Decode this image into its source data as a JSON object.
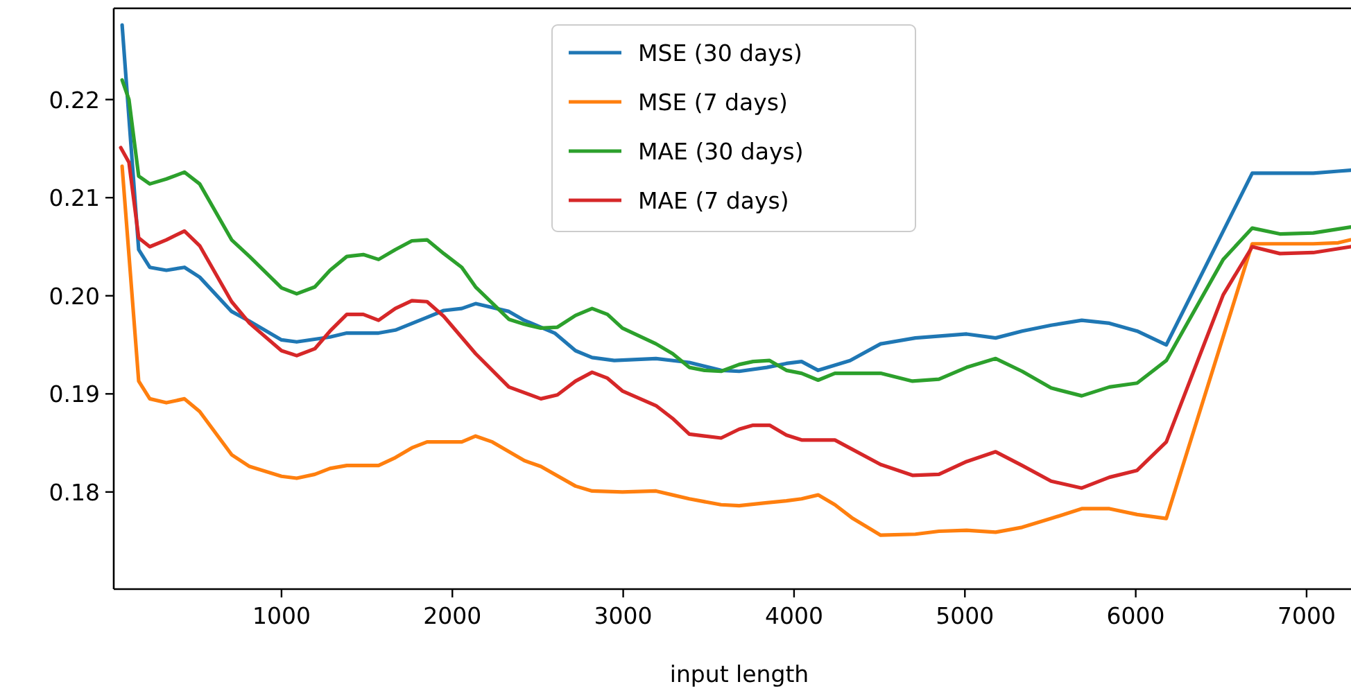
{
  "chart_data": {
    "type": "line",
    "xlabel": "input length",
    "xlim": [
      18,
      7260
    ],
    "xticks": [
      1000,
      2000,
      3000,
      4000,
      5000,
      6000,
      7000
    ],
    "ylim": [
      0.1701,
      0.2293
    ],
    "yticks": [
      {
        "value": 0.18,
        "label": "0.18"
      },
      {
        "value": 0.19,
        "label": "0.19"
      },
      {
        "value": 0.2,
        "label": "0.20"
      },
      {
        "value": 0.21,
        "label": "0.21"
      },
      {
        "value": 0.22,
        "label": "0.22"
      }
    ],
    "legend": "top",
    "series": [
      {
        "name": "MSE (30 days)",
        "color": "#1f77b4",
        "x": [
          67,
          164,
          229,
          326,
          432,
          521,
          708,
          813,
          1000,
          1089,
          1284,
          1382,
          1568,
          1666,
          1852,
          1950,
          2055,
          2136,
          2331,
          2421,
          2599,
          2721,
          2818,
          2948,
          3192,
          3387,
          3573,
          3679,
          3841,
          3955,
          4044,
          4141,
          4328,
          4507,
          4710,
          5010,
          5180,
          5335,
          5505,
          5684,
          5846,
          6008,
          6179,
          6682,
          7039,
          7185,
          7258
        ],
        "values": [
          0.2276,
          0.2047,
          0.2029,
          0.2026,
          0.2029,
          0.2019,
          0.1984,
          0.1974,
          0.1955,
          0.1953,
          0.1958,
          0.1962,
          0.1962,
          0.1965,
          0.1978,
          0.1985,
          0.1987,
          0.1992,
          0.1984,
          0.1975,
          0.1962,
          0.1944,
          0.1937,
          0.1934,
          0.1936,
          0.1932,
          0.1924,
          0.1923,
          0.1927,
          0.1931,
          0.1933,
          0.1924,
          0.1934,
          0.1951,
          0.1957,
          0.1961,
          0.1957,
          0.1964,
          0.197,
          0.1975,
          0.1972,
          0.1964,
          0.195,
          0.2125,
          0.2125,
          0.2127,
          0.2128
        ]
      },
      {
        "name": "MSE (7 days)",
        "color": "#ff7f0e",
        "x": [
          67,
          164,
          229,
          326,
          432,
          521,
          708,
          813,
          1000,
          1089,
          1195,
          1284,
          1382,
          1568,
          1666,
          1763,
          1852,
          2055,
          2136,
          2234,
          2421,
          2518,
          2721,
          2818,
          2995,
          3192,
          3289,
          3387,
          3573,
          3679,
          3841,
          3955,
          4044,
          4141,
          4239,
          4344,
          4507,
          4710,
          4848,
          5010,
          5180,
          5335,
          5505,
          5684,
          5846,
          6008,
          6179,
          6682,
          7039,
          7185,
          7258
        ],
        "values": [
          0.2132,
          0.1913,
          0.1895,
          0.1891,
          0.1895,
          0.1882,
          0.1838,
          0.1826,
          0.1816,
          0.1814,
          0.1818,
          0.1824,
          0.1827,
          0.1827,
          0.1835,
          0.1845,
          0.1851,
          0.1851,
          0.1857,
          0.1851,
          0.1832,
          0.1826,
          0.1806,
          0.1801,
          0.18,
          0.1801,
          0.1797,
          0.1793,
          0.1787,
          0.1786,
          0.1789,
          0.1791,
          0.1793,
          0.1797,
          0.1787,
          0.1773,
          0.1756,
          0.1757,
          0.176,
          0.1761,
          0.1759,
          0.1764,
          0.1773,
          0.1783,
          0.1783,
          0.1777,
          0.1773,
          0.2053,
          0.2053,
          0.2054,
          0.2057
        ]
      },
      {
        "name": "MAE (30 days)",
        "color": "#2ca02c",
        "x": [
          67,
          107,
          164,
          229,
          326,
          432,
          521,
          708,
          813,
          1000,
          1089,
          1195,
          1284,
          1382,
          1479,
          1568,
          1666,
          1763,
          1852,
          1950,
          2055,
          2136,
          2331,
          2421,
          2518,
          2615,
          2721,
          2818,
          2908,
          2995,
          3192,
          3289,
          3387,
          3476,
          3573,
          3679,
          3760,
          3857,
          3955,
          4044,
          4141,
          4239,
          4507,
          4693,
          4848,
          5010,
          5180,
          5335,
          5505,
          5684,
          5846,
          6008,
          6179,
          6512,
          6682,
          6844,
          7039,
          7258
        ],
        "values": [
          0.222,
          0.22,
          0.2122,
          0.2114,
          0.2119,
          0.2126,
          0.2114,
          0.2057,
          0.204,
          0.2008,
          0.2002,
          0.2009,
          0.2026,
          0.204,
          0.2042,
          0.2037,
          0.2047,
          0.2056,
          0.2057,
          0.2043,
          0.2029,
          0.2009,
          0.1976,
          0.1971,
          0.1967,
          0.1968,
          0.198,
          0.1987,
          0.1981,
          0.1967,
          0.1951,
          0.1941,
          0.1927,
          0.1924,
          0.1923,
          0.193,
          0.1933,
          0.1934,
          0.1924,
          0.1921,
          0.1914,
          0.1921,
          0.1921,
          0.1913,
          0.1915,
          0.1927,
          0.1936,
          0.1923,
          0.1906,
          0.1898,
          0.1907,
          0.1911,
          0.1934,
          0.2037,
          0.2069,
          0.2063,
          0.2064,
          0.207
        ]
      },
      {
        "name": "MAE (7 days)",
        "color": "#d62728",
        "x": [
          59,
          107,
          164,
          229,
          326,
          432,
          521,
          708,
          813,
          1000,
          1089,
          1195,
          1284,
          1382,
          1479,
          1568,
          1666,
          1763,
          1852,
          1950,
          2136,
          2331,
          2518,
          2615,
          2721,
          2818,
          2908,
          2995,
          3192,
          3289,
          3387,
          3476,
          3573,
          3679,
          3760,
          3857,
          3955,
          4044,
          4239,
          4507,
          4693,
          4848,
          5010,
          5180,
          5335,
          5505,
          5684,
          5846,
          6008,
          6179,
          6512,
          6682,
          6844,
          7039,
          7258
        ],
        "values": [
          0.2151,
          0.2136,
          0.2059,
          0.205,
          0.2057,
          0.2066,
          0.2051,
          0.1994,
          0.1972,
          0.1944,
          0.1939,
          0.1946,
          0.1964,
          0.1981,
          0.1981,
          0.1975,
          0.1987,
          0.1995,
          0.1994,
          0.1979,
          0.1941,
          0.1907,
          0.1895,
          0.1899,
          0.1913,
          0.1922,
          0.1916,
          0.1903,
          0.1888,
          0.1875,
          0.1859,
          0.1857,
          0.1855,
          0.1864,
          0.1868,
          0.1868,
          0.1858,
          0.1853,
          0.1853,
          0.1828,
          0.1817,
          0.1818,
          0.1831,
          0.1841,
          0.1827,
          0.1811,
          0.1804,
          0.1815,
          0.1822,
          0.1851,
          0.2001,
          0.205,
          0.2043,
          0.2044,
          0.205
        ]
      }
    ]
  }
}
